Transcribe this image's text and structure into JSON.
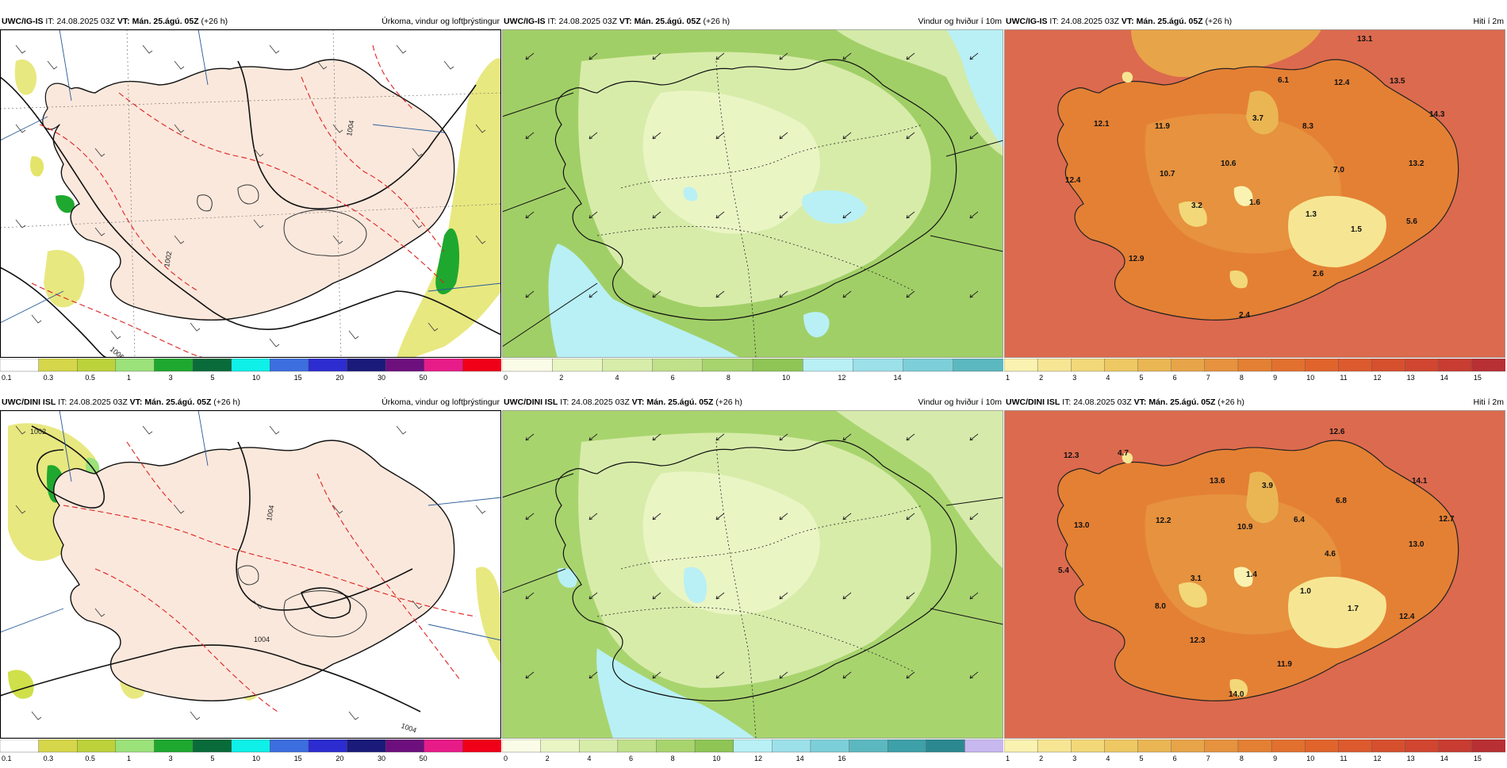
{
  "panels": [
    {
      "id": "p1",
      "model": "UWC/IG-IS",
      "it_label": "IT:",
      "it_value": "24.08.2025 03Z",
      "vt_label": "VT:",
      "vt_value": "Mán. 25.ágú. 05Z",
      "offset": "(+26 h)",
      "title": "Úrkoma, vindur og loftþrýstingur",
      "colorbar": {
        "colors": [
          "#ffffff",
          "#d6d64a",
          "#bcd23b",
          "#9be27a",
          "#1fa82f",
          "#0a6b3a",
          "#0ef0e8",
          "#3c6ee0",
          "#2c2cd0",
          "#1a1a7a",
          "#6e0f7e",
          "#e81c88",
          "#f00018"
        ],
        "ticks": [
          "0.1",
          "0.3",
          "0.5",
          "1",
          "3",
          "5",
          "10",
          "15",
          "20",
          "30",
          "50"
        ]
      },
      "isobars": [
        "1004",
        "1002",
        "1006"
      ]
    },
    {
      "id": "p2",
      "model": "UWC/IG-IS",
      "it_label": "IT:",
      "it_value": "24.08.2025 03Z",
      "vt_label": "VT:",
      "vt_value": "Mán. 25.ágú. 05Z",
      "offset": "(+26 h)",
      "title": "Vindur og hviður í 10m",
      "colorbar": {
        "colors": [
          "#fafce8",
          "#eaf5c4",
          "#d8ecaa",
          "#c0e08a",
          "#a8d46e",
          "#8ec555",
          "#b8f0f5",
          "#9ce0ea",
          "#7ccfd8",
          "#5cb8c0"
        ],
        "ticks": [
          "0",
          "2",
          "4",
          "6",
          "8",
          "10",
          "12",
          "14"
        ]
      }
    },
    {
      "id": "p3",
      "model": "UWC/IG-IS",
      "it_label": "IT:",
      "it_value": "24.08.2025 03Z",
      "vt_label": "VT:",
      "vt_value": "Mán. 25.ágú. 05Z",
      "offset": "(+26 h)",
      "title": "Hiti í 2m",
      "colorbar": {
        "colors": [
          "#faf2b0",
          "#f6e694",
          "#f2d878",
          "#eec862",
          "#eab654",
          "#e8a448",
          "#e6923e",
          "#e48034",
          "#e2702e",
          "#e0642c",
          "#dc5a2e",
          "#d6502e",
          "#d04630",
          "#c83c32",
          "#b83034"
        ],
        "ticks": [
          "1",
          "2",
          "3",
          "4",
          "5",
          "6",
          "7",
          "8",
          "9",
          "10",
          "11",
          "12",
          "13",
          "14",
          "15"
        ]
      },
      "temps": [
        "13.1",
        "6.1",
        "12.4",
        "13.5",
        "12.1",
        "11.9",
        "3.7",
        "8.3",
        "14.3",
        "10.6",
        "7.0",
        "13.2",
        "12.4",
        "10.7",
        "3.2",
        "1.6",
        "1.3",
        "1.5",
        "5.6",
        "12.9",
        "2.6",
        "2.4"
      ]
    },
    {
      "id": "p4",
      "model": "UWC/DINI ISL",
      "it_label": "IT:",
      "it_value": "24.08.2025 03Z",
      "vt_label": "VT:",
      "vt_value": "Mán. 25.ágú. 05Z",
      "offset": "(+26 h)",
      "title": "Úrkoma, vindur og loftþrýstingur",
      "colorbar": {
        "colors": [
          "#ffffff",
          "#d6d64a",
          "#bcd23b",
          "#9be27a",
          "#1fa82f",
          "#0a6b3a",
          "#0ef0e8",
          "#3c6ee0",
          "#2c2cd0",
          "#1a1a7a",
          "#6e0f7e",
          "#e81c88",
          "#f00018"
        ],
        "ticks": [
          "0.1",
          "0.3",
          "0.5",
          "1",
          "3",
          "5",
          "10",
          "15",
          "20",
          "30",
          "50"
        ]
      },
      "isobars": [
        "1002",
        "1004",
        "1004",
        "1004"
      ]
    },
    {
      "id": "p5",
      "model": "UWC/DINI ISL",
      "it_label": "IT:",
      "it_value": "24.08.2025 03Z",
      "vt_label": "VT:",
      "vt_value": "Mán. 25.ágú. 05Z",
      "offset": "(+26 h)",
      "title": "Vindur og hviður í 10m",
      "colorbar": {
        "colors": [
          "#fafce8",
          "#eaf5c4",
          "#d8ecaa",
          "#c0e08a",
          "#a8d46e",
          "#8ec555",
          "#b8f0f5",
          "#9ce0ea",
          "#7ccfd8",
          "#5cb8c0",
          "#3ea0a8",
          "#2c8890",
          "#c8b8f0"
        ],
        "ticks": [
          "0",
          "2",
          "4",
          "6",
          "8",
          "10",
          "12",
          "14",
          "16"
        ]
      }
    },
    {
      "id": "p6",
      "model": "UWC/DINI ISL",
      "it_label": "IT:",
      "it_value": "24.08.2025 03Z",
      "vt_label": "VT:",
      "vt_value": "Mán. 25.ágú. 05Z",
      "offset": "(+26 h)",
      "title": "Hiti í 2m",
      "colorbar": {
        "colors": [
          "#faf2b0",
          "#f6e694",
          "#f2d878",
          "#eec862",
          "#eab654",
          "#e8a448",
          "#e6923e",
          "#e48034",
          "#e2702e",
          "#e0642c",
          "#dc5a2e",
          "#d6502e",
          "#d04630",
          "#c83c32",
          "#b83034"
        ],
        "ticks": [
          "1",
          "2",
          "3",
          "4",
          "5",
          "6",
          "7",
          "8",
          "9",
          "10",
          "11",
          "12",
          "13",
          "14",
          "15"
        ]
      },
      "temps": [
        "12.6",
        "12.3",
        "4.7",
        "13.6",
        "3.9",
        "14.1",
        "12.7",
        "13.0",
        "12.2",
        "10.9",
        "6.4",
        "6.8",
        "13.0",
        "4.6",
        "5.4",
        "3.1",
        "1.4",
        "1.0",
        "1.7",
        "8.0",
        "12.4",
        "12.3",
        "11.9",
        "14.0"
      ]
    }
  ]
}
